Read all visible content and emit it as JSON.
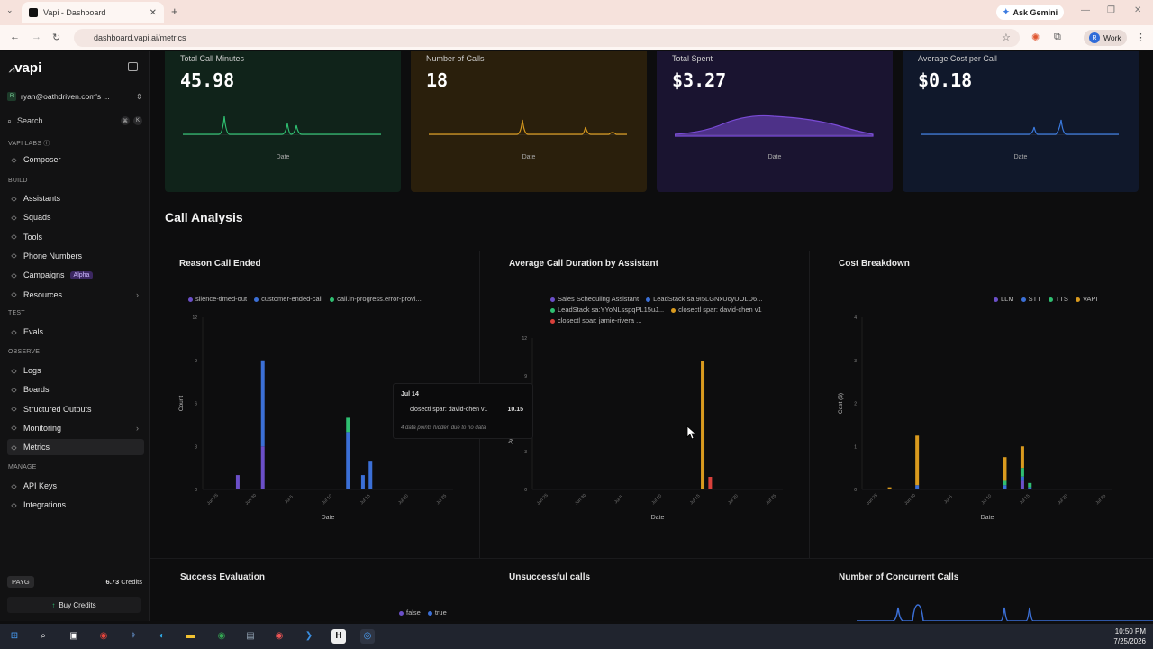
{
  "browser": {
    "tab_title": "Vapi - Dashboard",
    "url": "dashboard.vapi.ai/metrics",
    "gemini": "Ask Gemini",
    "profile": "Work",
    "profile_initial": "R"
  },
  "sidebar": {
    "logo": "vapi",
    "account": "ryan@oathdriven.com's ...",
    "account_badge": "R",
    "search": "Search",
    "kbd": [
      "⌘",
      "K"
    ],
    "sections": [
      {
        "label": "VAPI LABS ⓘ",
        "items": [
          {
            "label": "Composer",
            "icon": "composer-icon"
          }
        ]
      },
      {
        "label": "BUILD",
        "items": [
          {
            "label": "Assistants",
            "icon": "assistants-icon"
          },
          {
            "label": "Squads",
            "icon": "squads-icon"
          },
          {
            "label": "Tools",
            "icon": "tools-icon"
          },
          {
            "label": "Phone Numbers",
            "icon": "phone-icon"
          },
          {
            "label": "Campaigns",
            "icon": "campaigns-icon",
            "badge": "Alpha"
          },
          {
            "label": "Resources",
            "icon": "resources-icon",
            "chevron": true
          }
        ]
      },
      {
        "label": "TEST",
        "items": [
          {
            "label": "Evals",
            "icon": "evals-icon"
          }
        ]
      },
      {
        "label": "OBSERVE",
        "items": [
          {
            "label": "Logs",
            "icon": "logs-icon"
          },
          {
            "label": "Boards",
            "icon": "boards-icon"
          },
          {
            "label": "Structured Outputs",
            "icon": "outputs-icon"
          },
          {
            "label": "Monitoring",
            "icon": "monitoring-icon",
            "chevron": true
          },
          {
            "label": "Metrics",
            "icon": "metrics-icon",
            "active": true
          }
        ]
      },
      {
        "label": "MANAGE",
        "items": [
          {
            "label": "API Keys",
            "icon": "key-icon"
          },
          {
            "label": "Integrations",
            "icon": "integrations-icon"
          }
        ]
      }
    ],
    "plan": "PAYG",
    "credits": "6.73",
    "credits_label": "Credits",
    "buy": "Buy Credits"
  },
  "kpis": [
    {
      "title": "Total Call Minutes",
      "value": "45.98",
      "xlabel": "Date",
      "color": "#2fbf71",
      "bg": "#10231a"
    },
    {
      "title": "Number of Calls",
      "value": "18",
      "xlabel": "Date",
      "color": "#d99a1e",
      "bg": "#2a1f0c"
    },
    {
      "title": "Total Spent",
      "value": "$3.27",
      "xlabel": "Date",
      "color": "#7a4bd6",
      "bg": "#1a1430"
    },
    {
      "title": "Average Cost per Call",
      "value": "$0.18",
      "xlabel": "Date",
      "color": "#3b7be0",
      "bg": "#10182b"
    }
  ],
  "section_title": "Call Analysis",
  "chart_data": [
    {
      "type": "bar",
      "title": "Reason Call Ended",
      "xlabel": "Date",
      "ylabel": "Count",
      "ylim": [
        0,
        12
      ],
      "yticks": [
        "12",
        "9",
        "6",
        "3",
        "0"
      ],
      "x": [
        "Jun 25",
        "Jun 30",
        "Jul 5",
        "Jul 10",
        "Jul 15",
        "Jul 20",
        "Jul 25"
      ],
      "series": [
        {
          "name": "silence-timed-out",
          "color": "#6b4fc8"
        },
        {
          "name": "customer-ended-call",
          "color": "#3b6fd6"
        },
        {
          "name": "call.in-progress.error-provi...",
          "color": "#2fbf71"
        }
      ],
      "bars": [
        {
          "x": 0.14,
          "segs": [
            1,
            0,
            0
          ]
        },
        {
          "x": 0.24,
          "segs": [
            3,
            6,
            0
          ]
        },
        {
          "x": 0.58,
          "segs": [
            0,
            4,
            1
          ]
        },
        {
          "x": 0.64,
          "segs": [
            0,
            1,
            0
          ]
        },
        {
          "x": 0.67,
          "segs": [
            0,
            2,
            0
          ]
        }
      ]
    },
    {
      "type": "bar",
      "title": "Average Call Duration by Assistant",
      "xlabel": "Date",
      "ylabel": "Avg Call Duration (min)",
      "ylim": [
        0,
        12
      ],
      "yticks": [
        "12",
        "9",
        "6",
        "3",
        "0"
      ],
      "x": [
        "Jun 25",
        "Jun 30",
        "Jul 5",
        "Jul 10",
        "Jul 15",
        "Jul 20",
        "Jul 25"
      ],
      "series": [
        {
          "name": "Sales Scheduling Assistant",
          "color": "#6b4fc8"
        },
        {
          "name": "LeadStack sa:9I5LGNxUcyUOLD6...",
          "color": "#3b6fd6"
        },
        {
          "name": "LeadStack sa:YYoNLsspqPL15uJ...",
          "color": "#2fbf71"
        },
        {
          "name": "closectl spar: david-chen v1",
          "color": "#d99a1e"
        },
        {
          "name": "closectl spar: jamie-rivera ...",
          "color": "#d9413b"
        }
      ],
      "bars": [
        {
          "x": 0.68,
          "segs": [
            0,
            0,
            0,
            10.15,
            0
          ]
        },
        {
          "x": 0.71,
          "segs": [
            0,
            0,
            0,
            0,
            1
          ]
        }
      ],
      "tooltip": {
        "date": "Jul 14",
        "series": "closectl spar: david-chen v1",
        "value": "10.15",
        "note": "4 data points hidden due to no data"
      }
    },
    {
      "type": "bar",
      "title": "Cost Breakdown",
      "xlabel": "Date",
      "ylabel": "Cost ($)",
      "ylim": [
        0,
        4
      ],
      "yticks": [
        "4",
        "3",
        "2",
        "1",
        "0"
      ],
      "x": [
        "Jun 25",
        "Jun 30",
        "Jul 5",
        "Jul 10",
        "Jul 15",
        "Jul 20",
        "Jul 25"
      ],
      "series": [
        {
          "name": "LLM",
          "color": "#6b4fc8"
        },
        {
          "name": "STT",
          "color": "#3b6fd6"
        },
        {
          "name": "TTS",
          "color": "#2fbf71"
        },
        {
          "name": "VAPI",
          "color": "#d99a1e"
        }
      ],
      "bars": [
        {
          "x": 0.11,
          "segs": [
            0,
            0,
            0,
            0.05
          ]
        },
        {
          "x": 0.22,
          "segs": [
            0,
            0.1,
            0,
            1.15
          ]
        },
        {
          "x": 0.57,
          "segs": [
            0,
            0.1,
            0.1,
            0.55
          ]
        },
        {
          "x": 0.64,
          "segs": [
            0.2,
            0.1,
            0.2,
            0.5
          ]
        },
        {
          "x": 0.67,
          "segs": [
            0,
            0.05,
            0.1,
            0
          ]
        }
      ]
    }
  ],
  "bottom_titles": [
    "Success Evaluation",
    "Unsuccessful calls",
    "Number of Concurrent Calls"
  ],
  "success_legend": [
    {
      "name": "false",
      "color": "#6b4fc8"
    },
    {
      "name": "true",
      "color": "#3b6fd6"
    }
  ],
  "clock": {
    "time": "10:50 PM",
    "date": "7/25/2026"
  }
}
